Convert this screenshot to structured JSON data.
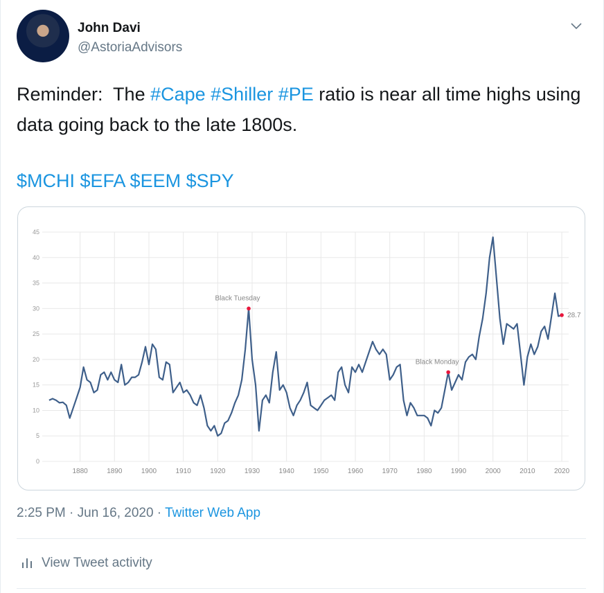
{
  "tweet": {
    "name": "John Davi",
    "handle": "@AstoriaAdvisors",
    "text": {
      "lead": "Reminder:  The ",
      "hashtags": "#Cape #Shiller #PE",
      "tail": " ratio is near all time highs using data going back to the late 1800s."
    },
    "cashtags": "$MCHI $EFA $EEM $SPY",
    "timestamp": "2:25 PM · Jun 16, 2020",
    "separator": "·",
    "source": "Twitter Web App",
    "activity": "View Tweet activity"
  },
  "chart_data": {
    "type": "line",
    "color": "#3e5f8a",
    "grid": true,
    "x": [
      1871,
      1872,
      1873,
      1874,
      1875,
      1876,
      1877,
      1878,
      1879,
      1880,
      1881,
      1882,
      1883,
      1884,
      1885,
      1886,
      1887,
      1888,
      1889,
      1890,
      1891,
      1892,
      1893,
      1894,
      1895,
      1896,
      1897,
      1898,
      1899,
      1900,
      1901,
      1902,
      1903,
      1904,
      1905,
      1906,
      1907,
      1908,
      1909,
      1910,
      1911,
      1912,
      1913,
      1914,
      1915,
      1916,
      1917,
      1918,
      1919,
      1920,
      1921,
      1922,
      1923,
      1924,
      1925,
      1926,
      1927,
      1928,
      1929,
      1930,
      1931,
      1932,
      1933,
      1934,
      1935,
      1936,
      1937,
      1938,
      1939,
      1940,
      1941,
      1942,
      1943,
      1944,
      1945,
      1946,
      1947,
      1948,
      1949,
      1950,
      1951,
      1952,
      1953,
      1954,
      1955,
      1956,
      1957,
      1958,
      1959,
      1960,
      1961,
      1962,
      1963,
      1964,
      1965,
      1966,
      1967,
      1968,
      1969,
      1970,
      1971,
      1972,
      1973,
      1974,
      1975,
      1976,
      1977,
      1978,
      1979,
      1980,
      1981,
      1982,
      1983,
      1984,
      1985,
      1986,
      1987,
      1988,
      1989,
      1990,
      1991,
      1992,
      1993,
      1994,
      1995,
      1996,
      1997,
      1998,
      1999,
      2000,
      2001,
      2002,
      2003,
      2004,
      2005,
      2006,
      2007,
      2008,
      2009,
      2010,
      2011,
      2012,
      2013,
      2014,
      2015,
      2016,
      2017,
      2018,
      2019,
      2020
    ],
    "values": [
      12,
      12.3,
      12,
      11.5,
      11.6,
      11,
      8.5,
      10.5,
      12.5,
      14.5,
      18.5,
      16,
      15.5,
      13.5,
      14,
      17,
      17.5,
      16,
      17.5,
      16,
      15.5,
      19,
      15,
      15.5,
      16.5,
      16.5,
      17,
      19.5,
      22.5,
      19,
      23,
      22,
      16.5,
      16,
      19.5,
      19,
      13.5,
      14.5,
      15.5,
      13.5,
      14,
      13,
      11.5,
      11,
      13,
      10.5,
      7,
      6,
      7,
      5,
      5.5,
      7.5,
      8,
      9.5,
      11.5,
      13,
      16,
      22,
      30,
      20,
      15,
      6,
      12,
      13,
      11.5,
      17.5,
      21.5,
      14,
      15,
      13.5,
      10.5,
      9,
      11,
      12,
      13.5,
      15.5,
      11,
      10.5,
      10,
      11,
      12,
      12.5,
      13,
      12,
      17.5,
      18.5,
      15,
      13.5,
      18.5,
      17.5,
      19,
      17.5,
      19.5,
      21.5,
      23.5,
      22,
      21,
      22,
      21,
      16,
      17,
      18.5,
      19,
      12,
      9,
      11.5,
      10.5,
      9,
      9,
      9,
      8.5,
      7,
      10,
      9.5,
      10.5,
      14,
      17.5,
      14,
      15.5,
      17,
      16,
      19.5,
      20.5,
      21,
      20,
      24.5,
      28,
      33,
      40,
      44,
      36,
      28,
      23,
      27,
      26.5,
      26,
      27,
      21,
      15,
      20.5,
      23,
      21,
      22.5,
      25.5,
      26.5,
      24,
      28.5,
      33,
      28.5,
      28.7
    ],
    "xlim": [
      1869,
      2022
    ],
    "xticks": [
      1880,
      1890,
      1900,
      1910,
      1920,
      1930,
      1940,
      1950,
      1960,
      1970,
      1980,
      1990,
      2000,
      2010,
      2020
    ],
    "ylim": [
      0,
      45
    ],
    "yticks": [
      0,
      5,
      10,
      15,
      20,
      25,
      30,
      35,
      40,
      45
    ],
    "annotations": [
      {
        "text": "Black Tuesday",
        "x": 1929,
        "y": 30
      },
      {
        "text": "Black Monday",
        "x": 1987,
        "y": 17.5
      },
      {
        "text": "28.7",
        "x": 2020,
        "y": 28.7
      }
    ]
  }
}
